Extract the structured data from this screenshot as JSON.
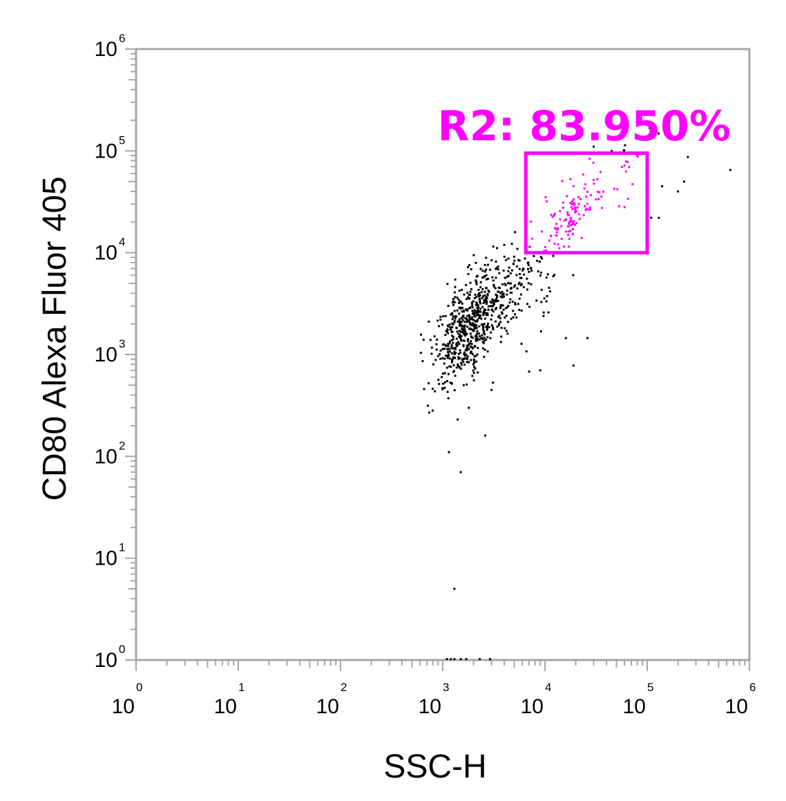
{
  "chart_data": {
    "type": "scatter",
    "xlabel": "SSC-H",
    "ylabel": "CD80 Alexa Fluor 405",
    "x_scale": "log10",
    "y_scale": "log10",
    "xlim": [
      1,
      1000000
    ],
    "ylim": [
      1,
      1000000
    ],
    "x_ticks": [
      {
        "base": "10",
        "exp": "0",
        "value": 1
      },
      {
        "base": "10",
        "exp": "1",
        "value": 10
      },
      {
        "base": "10",
        "exp": "2",
        "value": 100
      },
      {
        "base": "10",
        "exp": "3",
        "value": 1000
      },
      {
        "base": "10",
        "exp": "4",
        "value": 10000
      },
      {
        "base": "10",
        "exp": "5",
        "value": 100000
      },
      {
        "base": "10",
        "exp": "6",
        "value": 1000000
      }
    ],
    "y_ticks": [
      {
        "base": "10",
        "exp": "0",
        "value": 1
      },
      {
        "base": "10",
        "exp": "1",
        "value": 10
      },
      {
        "base": "10",
        "exp": "2",
        "value": 100
      },
      {
        "base": "10",
        "exp": "3",
        "value": 1000
      },
      {
        "base": "10",
        "exp": "4",
        "value": 10000
      },
      {
        "base": "10",
        "exp": "5",
        "value": 100000
      },
      {
        "base": "10",
        "exp": "6",
        "value": 1000000
      }
    ],
    "grid": false,
    "axis_color": "#a6a6a6",
    "point_color": "#000000",
    "gate": {
      "label": "R2: 83.950%",
      "color": "#ff00ff",
      "x_range": [
        6500,
        100000
      ],
      "y_range": [
        10000,
        95000
      ]
    },
    "point_groups": [
      {
        "description_of_region": "main",
        "x_center": 1700,
        "y_center": 1800,
        "x_spread": 0.17,
        "y_spread": 0.28,
        "count": 520
      },
      {
        "description_of_region": "tail",
        "x_center": 4500,
        "y_center": 4000,
        "x_spread": 0.25,
        "y_spread": 0.3,
        "count": 210
      },
      {
        "description_of_region": "gate_core",
        "x_center": 18000,
        "y_center": 22000,
        "x_spread": 0.09,
        "y_spread": 0.12,
        "count": 60
      },
      {
        "description_of_region": "gate_diffuse",
        "x_center": 22000,
        "y_center": 30000,
        "x_spread": 0.3,
        "y_spread": 0.3,
        "count": 70
      }
    ],
    "outlier_points": [
      [
        1300,
        5
      ],
      [
        1150,
        110
      ],
      [
        1500,
        70
      ],
      [
        2600,
        160
      ],
      [
        1800,
        300
      ],
      [
        1400,
        230
      ],
      [
        3000,
        450
      ],
      [
        3100,
        530
      ],
      [
        19000,
        780
      ],
      [
        26000,
        1450
      ],
      [
        16000,
        1450
      ],
      [
        7000,
        680
      ],
      [
        9000,
        700
      ],
      [
        130000,
        22000
      ],
      [
        230000,
        50000
      ],
      [
        650000,
        65000
      ],
      [
        200000,
        40000
      ],
      [
        60000,
        72000
      ],
      [
        80000,
        90000
      ],
      [
        250000,
        87000
      ],
      [
        45000,
        100000
      ],
      [
        35000,
        62000
      ],
      [
        60000,
        28000
      ],
      [
        140000,
        45000
      ],
      [
        30000,
        110000
      ]
    ],
    "baseline_points": [
      [
        1100,
        1
      ],
      [
        1200,
        1
      ],
      [
        1300,
        1
      ],
      [
        1500,
        1
      ],
      [
        1700,
        1
      ],
      [
        2300,
        1
      ],
      [
        2900,
        1
      ]
    ]
  }
}
